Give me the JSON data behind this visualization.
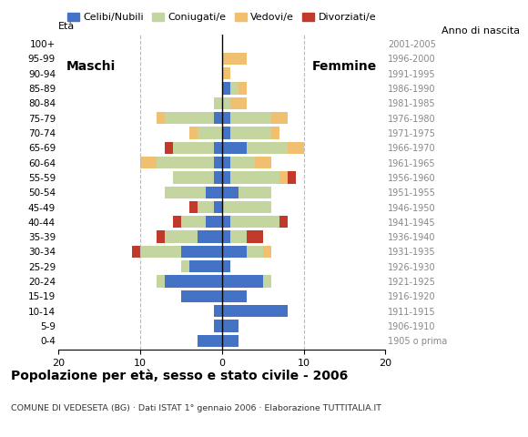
{
  "age_groups": [
    "100+",
    "95-99",
    "90-94",
    "85-89",
    "80-84",
    "75-79",
    "70-74",
    "65-69",
    "60-64",
    "55-59",
    "50-54",
    "45-49",
    "40-44",
    "35-39",
    "30-34",
    "25-29",
    "20-24",
    "15-19",
    "10-14",
    "5-9",
    "0-4"
  ],
  "birth_years": [
    "1905 o prima",
    "1906-1910",
    "1911-1915",
    "1916-1920",
    "1921-1925",
    "1926-1930",
    "1931-1935",
    "1936-1940",
    "1941-1945",
    "1946-1950",
    "1951-1955",
    "1956-1960",
    "1961-1965",
    "1966-1970",
    "1971-1975",
    "1976-1980",
    "1981-1985",
    "1986-1990",
    "1991-1995",
    "1996-2000",
    "2001-2005"
  ],
  "males": {
    "celibe": [
      0,
      0,
      0,
      0,
      0,
      1,
      0,
      1,
      1,
      1,
      2,
      1,
      2,
      3,
      5,
      4,
      7,
      5,
      1,
      1,
      3
    ],
    "coniugato": [
      0,
      0,
      0,
      0,
      1,
      6,
      3,
      5,
      7,
      5,
      5,
      2,
      3,
      4,
      5,
      1,
      1,
      0,
      0,
      0,
      0
    ],
    "vedovo": [
      0,
      0,
      0,
      0,
      0,
      1,
      1,
      0,
      2,
      0,
      0,
      0,
      0,
      0,
      0,
      0,
      0,
      0,
      0,
      0,
      0
    ],
    "divorziato": [
      0,
      0,
      0,
      0,
      0,
      0,
      0,
      1,
      0,
      0,
      0,
      1,
      1,
      1,
      1,
      0,
      0,
      0,
      0,
      0,
      0
    ]
  },
  "females": {
    "nubile": [
      0,
      0,
      0,
      1,
      0,
      1,
      1,
      3,
      1,
      1,
      2,
      0,
      1,
      1,
      3,
      1,
      5,
      3,
      8,
      2,
      2
    ],
    "coniugata": [
      0,
      0,
      0,
      1,
      1,
      5,
      5,
      5,
      3,
      6,
      4,
      6,
      6,
      2,
      2,
      0,
      1,
      0,
      0,
      0,
      0
    ],
    "vedova": [
      0,
      3,
      1,
      1,
      2,
      2,
      1,
      2,
      2,
      1,
      0,
      0,
      0,
      0,
      1,
      0,
      0,
      0,
      0,
      0,
      0
    ],
    "divorziata": [
      0,
      0,
      0,
      0,
      0,
      0,
      0,
      0,
      0,
      1,
      0,
      0,
      1,
      2,
      0,
      0,
      0,
      0,
      0,
      0,
      0
    ]
  },
  "colors": {
    "celibe": "#4472c4",
    "coniugato": "#c5d5a0",
    "vedovo": "#f0c070",
    "divorziato": "#c0392b"
  },
  "xlim": 20,
  "title": "Popolazione per età, sesso e stato civile - 2006",
  "subtitle": "COMUNE DI VEDESETA (BG) · Dati ISTAT 1° gennaio 2006 · Elaborazione TUTTITALIA.IT",
  "legend_labels": [
    "Celibi/Nubili",
    "Coniugati/e",
    "Vedovi/e",
    "Divorziati/e"
  ],
  "ylabel_left": "Età",
  "ylabel_right": "Anno di nascita",
  "maschi_label": "Maschi",
  "femmine_label": "Femmine",
  "bg_color": "#f5f5f5"
}
